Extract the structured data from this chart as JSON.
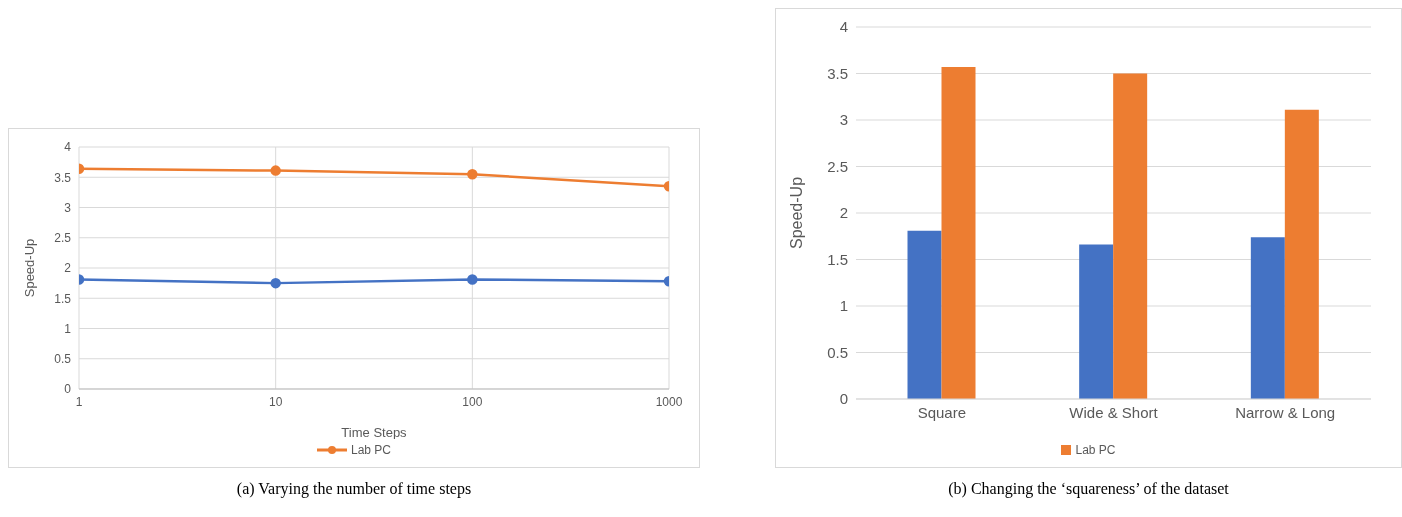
{
  "chart_data": [
    {
      "type": "line",
      "x": [
        1,
        10,
        100,
        1000
      ],
      "xlim": [
        1,
        1000
      ],
      "xticks": [
        1,
        10,
        100,
        1000
      ],
      "log": "x",
      "xlabel": "Time Steps",
      "ylabel": "Speed-Up",
      "ylim": [
        0,
        4
      ],
      "yticks": [
        0,
        0.5,
        1,
        1.5,
        2,
        2.5,
        3,
        3.5,
        4
      ],
      "grid": true,
      "legend": "bottom",
      "marker": "circle",
      "line_style": "solid",
      "series": [
        {
          "color": "#4472c4",
          "values": [
            1.81,
            1.75,
            1.81,
            1.78
          ]
        },
        {
          "name": "Lab PC",
          "color": "#ed7d31",
          "values": [
            3.64,
            3.61,
            3.55,
            3.35
          ]
        }
      ],
      "annotations": [
        "(a) Varying the number of time steps"
      ]
    },
    {
      "type": "bar",
      "categories": [
        "Square",
        "Wide & Short",
        "Narrow & Long"
      ],
      "ylabel": "Speed-Up",
      "ylim": [
        0,
        4
      ],
      "yticks": [
        0,
        0.5,
        1,
        1.5,
        2,
        2.5,
        3,
        3.5,
        4
      ],
      "grid": "y",
      "legend": "bottom",
      "series": [
        {
          "color": "#4472c4",
          "values": [
            1.81,
            1.66,
            1.74
          ]
        },
        {
          "name": "Lab PC",
          "color": "#ed7d31",
          "values": [
            3.57,
            3.5,
            3.11
          ]
        }
      ],
      "annotations": [
        "(b) Changing the ‘squareness’ of the dataset"
      ]
    }
  ]
}
